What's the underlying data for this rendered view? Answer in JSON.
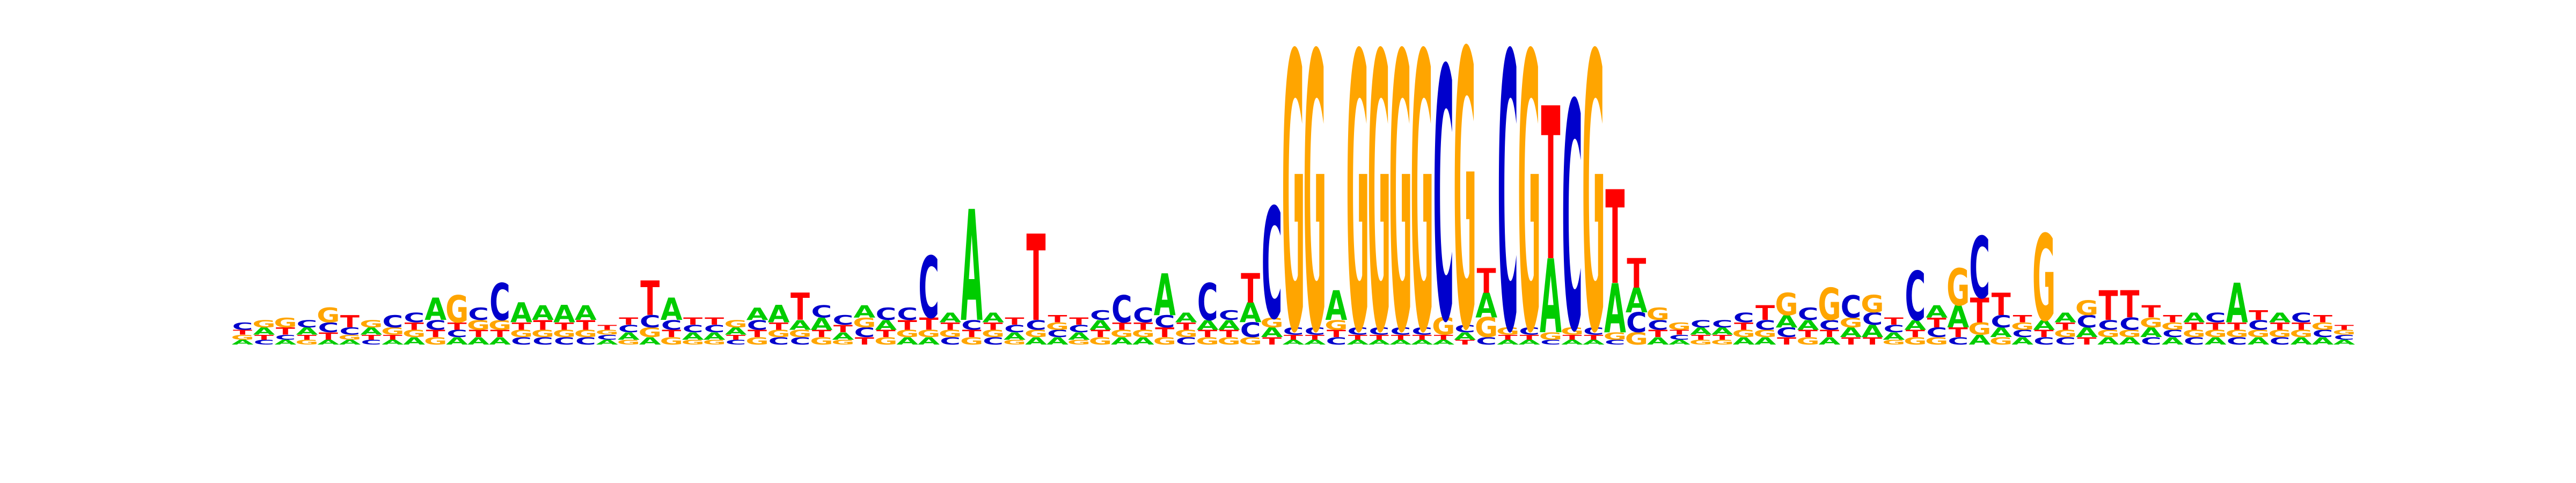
{
  "chart_data": {
    "type": "sequence-logo",
    "alphabet": [
      "A",
      "C",
      "G",
      "T"
    ],
    "colors": {
      "A": "#00cc00",
      "C": "#0000cc",
      "G": "#ffa500",
      "T": "#ff0000"
    },
    "ylim": [
      0,
      2
    ],
    "unit": "bits",
    "positions": [
      {
        "A": 0.02,
        "C": 0.03,
        "G": 0.02,
        "T": 0.02
      },
      {
        "A": 0.03,
        "C": 0.02,
        "G": 0.03,
        "T": 0.02
      },
      {
        "A": 0.02,
        "C": 0.02,
        "G": 0.04,
        "T": 0.03
      },
      {
        "A": 0.03,
        "C": 0.03,
        "G": 0.02,
        "T": 0.02
      },
      {
        "A": 0.02,
        "C": 0.04,
        "G": 0.06,
        "T": 0.03
      },
      {
        "A": 0.02,
        "C": 0.03,
        "G": 0.02,
        "T": 0.05
      },
      {
        "A": 0.03,
        "C": 0.02,
        "G": 0.03,
        "T": 0.02
      },
      {
        "A": 0.02,
        "C": 0.05,
        "G": 0.03,
        "T": 0.02
      },
      {
        "A": 0.03,
        "C": 0.04,
        "G": 0.03,
        "T": 0.03
      },
      {
        "A": 0.09,
        "C": 0.04,
        "G": 0.03,
        "T": 0.03
      },
      {
        "A": 0.03,
        "C": 0.03,
        "G": 0.11,
        "T": 0.03
      },
      {
        "A": 0.03,
        "C": 0.05,
        "G": 0.04,
        "T": 0.03
      },
      {
        "A": 0.03,
        "C": 0.15,
        "G": 0.04,
        "T": 0.03
      },
      {
        "A": 0.08,
        "C": 0.03,
        "G": 0.03,
        "T": 0.03
      },
      {
        "A": 0.06,
        "C": 0.03,
        "G": 0.03,
        "T": 0.04
      },
      {
        "A": 0.07,
        "C": 0.03,
        "G": 0.03,
        "T": 0.03
      },
      {
        "A": 0.06,
        "C": 0.03,
        "G": 0.03,
        "T": 0.04
      },
      {
        "A": 0.02,
        "C": 0.02,
        "G": 0.02,
        "T": 0.02
      },
      {
        "A": 0.03,
        "C": 0.03,
        "G": 0.02,
        "T": 0.03
      },
      {
        "A": 0.03,
        "C": 0.05,
        "G": 0.04,
        "T": 0.14
      },
      {
        "A": 0.09,
        "C": 0.04,
        "G": 0.03,
        "T": 0.03
      },
      {
        "A": 0.03,
        "C": 0.03,
        "G": 0.02,
        "T": 0.03
      },
      {
        "A": 0.03,
        "C": 0.03,
        "G": 0.02,
        "T": 0.03
      },
      {
        "A": 0.03,
        "C": 0.02,
        "G": 0.03,
        "T": 0.02
      },
      {
        "A": 0.05,
        "C": 0.04,
        "G": 0.03,
        "T": 0.03
      },
      {
        "A": 0.07,
        "C": 0.03,
        "G": 0.03,
        "T": 0.03
      },
      {
        "A": 0.04,
        "C": 0.03,
        "G": 0.03,
        "T": 0.11
      },
      {
        "A": 0.05,
        "C": 0.05,
        "G": 0.03,
        "T": 0.03
      },
      {
        "A": 0.03,
        "C": 0.04,
        "G": 0.02,
        "T": 0.03
      },
      {
        "A": 0.05,
        "C": 0.04,
        "G": 0.04,
        "T": 0.03
      },
      {
        "A": 0.04,
        "C": 0.05,
        "G": 0.03,
        "T": 0.03
      },
      {
        "A": 0.03,
        "C": 0.05,
        "G": 0.03,
        "T": 0.04
      },
      {
        "A": 0.03,
        "C": 0.25,
        "G": 0.03,
        "T": 0.05
      },
      {
        "A": 0.04,
        "C": 0.03,
        "G": 0.03,
        "T": 0.03
      },
      {
        "A": 0.45,
        "C": 0.04,
        "G": 0.03,
        "T": 0.03
      },
      {
        "A": 0.04,
        "C": 0.03,
        "G": 0.03,
        "T": 0.03
      },
      {
        "A": 0.03,
        "C": 0.03,
        "G": 0.02,
        "T": 0.03
      },
      {
        "A": 0.03,
        "C": 0.04,
        "G": 0.03,
        "T": 0.35
      },
      {
        "A": 0.03,
        "C": 0.03,
        "G": 0.03,
        "T": 0.03
      },
      {
        "A": 0.03,
        "C": 0.03,
        "G": 0.02,
        "T": 0.03
      },
      {
        "A": 0.04,
        "C": 0.04,
        "G": 0.03,
        "T": 0.03
      },
      {
        "A": 0.03,
        "C": 0.11,
        "G": 0.03,
        "T": 0.03
      },
      {
        "A": 0.03,
        "C": 0.06,
        "G": 0.03,
        "T": 0.03
      },
      {
        "A": 0.17,
        "C": 0.05,
        "G": 0.03,
        "T": 0.04
      },
      {
        "A": 0.04,
        "C": 0.03,
        "G": 0.03,
        "T": 0.03
      },
      {
        "A": 0.04,
        "C": 0.15,
        "G": 0.03,
        "T": 0.03
      },
      {
        "A": 0.04,
        "C": 0.04,
        "G": 0.03,
        "T": 0.03
      },
      {
        "A": 0.08,
        "C": 0.06,
        "G": 0.03,
        "T": 0.12
      },
      {
        "A": 0.04,
        "C": 0.45,
        "G": 0.04,
        "T": 0.03
      },
      {
        "A": 0.02,
        "C": 0.03,
        "G": 1.12,
        "T": 0.02
      },
      {
        "A": 0.02,
        "C": 0.03,
        "G": 1.12,
        "T": 0.02
      },
      {
        "A": 0.12,
        "C": 0.03,
        "G": 0.04,
        "T": 0.03
      },
      {
        "A": 0.02,
        "C": 0.03,
        "G": 1.12,
        "T": 0.02
      },
      {
        "A": 0.02,
        "C": 0.03,
        "G": 1.12,
        "T": 0.02
      },
      {
        "A": 0.02,
        "C": 0.03,
        "G": 1.12,
        "T": 0.02
      },
      {
        "A": 0.02,
        "C": 0.03,
        "G": 1.12,
        "T": 0.02
      },
      {
        "A": 0.02,
        "C": 1.02,
        "G": 0.07,
        "T": 0.02
      },
      {
        "A": 0.03,
        "C": 0.03,
        "G": 1.12,
        "T": 0.02
      },
      {
        "A": 0.1,
        "C": 0.03,
        "G": 0.08,
        "T": 0.1
      },
      {
        "A": 0.02,
        "C": 1.12,
        "G": 0.03,
        "T": 0.02
      },
      {
        "A": 0.02,
        "C": 0.03,
        "G": 1.12,
        "T": 0.02
      },
      {
        "A": 0.3,
        "C": 0.02,
        "G": 0.03,
        "T": 0.62
      },
      {
        "A": 0.02,
        "C": 0.92,
        "G": 0.03,
        "T": 0.02
      },
      {
        "A": 0.02,
        "C": 0.03,
        "G": 1.12,
        "T": 0.02
      },
      {
        "A": 0.2,
        "C": 0.02,
        "G": 0.03,
        "T": 0.38
      },
      {
        "A": 0.1,
        "C": 0.08,
        "G": 0.05,
        "T": 0.12
      },
      {
        "A": 0.03,
        "C": 0.04,
        "G": 0.05,
        "T": 0.03
      },
      {
        "A": 0.02,
        "C": 0.02,
        "G": 0.03,
        "T": 0.02
      },
      {
        "A": 0.03,
        "C": 0.03,
        "G": 0.02,
        "T": 0.02
      },
      {
        "A": 0.03,
        "C": 0.03,
        "G": 0.02,
        "T": 0.02
      },
      {
        "A": 0.03,
        "C": 0.04,
        "G": 0.03,
        "T": 0.03
      },
      {
        "A": 0.03,
        "C": 0.04,
        "G": 0.03,
        "T": 0.06
      },
      {
        "A": 0.05,
        "C": 0.04,
        "G": 0.09,
        "T": 0.03
      },
      {
        "A": 0.04,
        "C": 0.05,
        "G": 0.03,
        "T": 0.03
      },
      {
        "A": 0.03,
        "C": 0.04,
        "G": 0.13,
        "T": 0.03
      },
      {
        "A": 0.04,
        "C": 0.09,
        "G": 0.04,
        "T": 0.03
      },
      {
        "A": 0.05,
        "C": 0.05,
        "G": 0.07,
        "T": 0.03
      },
      {
        "A": 0.03,
        "C": 0.03,
        "G": 0.02,
        "T": 0.03
      },
      {
        "A": 0.04,
        "C": 0.2,
        "G": 0.03,
        "T": 0.03
      },
      {
        "A": 0.05,
        "C": 0.04,
        "G": 0.03,
        "T": 0.04
      },
      {
        "A": 0.09,
        "C": 0.03,
        "G": 0.15,
        "T": 0.04
      },
      {
        "A": 0.04,
        "C": 0.25,
        "G": 0.05,
        "T": 0.1
      },
      {
        "A": 0.04,
        "C": 0.05,
        "G": 0.03,
        "T": 0.09
      },
      {
        "A": 0.03,
        "C": 0.03,
        "G": 0.03,
        "T": 0.03
      },
      {
        "A": 0.04,
        "C": 0.03,
        "G": 0.35,
        "T": 0.03
      },
      {
        "A": 0.04,
        "C": 0.03,
        "G": 0.03,
        "T": 0.03
      },
      {
        "A": 0.04,
        "C": 0.05,
        "G": 0.06,
        "T": 0.03
      },
      {
        "A": 0.03,
        "C": 0.04,
        "G": 0.03,
        "T": 0.12
      },
      {
        "A": 0.03,
        "C": 0.05,
        "G": 0.03,
        "T": 0.11
      },
      {
        "A": 0.04,
        "C": 0.03,
        "G": 0.04,
        "T": 0.05
      },
      {
        "A": 0.03,
        "C": 0.03,
        "G": 0.03,
        "T": 0.03
      },
      {
        "A": 0.04,
        "C": 0.03,
        "G": 0.03,
        "T": 0.03
      },
      {
        "A": 0.03,
        "C": 0.04,
        "G": 0.03,
        "T": 0.03
      },
      {
        "A": 0.16,
        "C": 0.03,
        "G": 0.03,
        "T": 0.03
      },
      {
        "A": 0.03,
        "C": 0.04,
        "G": 0.03,
        "T": 0.04
      },
      {
        "A": 0.04,
        "C": 0.03,
        "G": 0.03,
        "T": 0.03
      },
      {
        "A": 0.03,
        "C": 0.04,
        "G": 0.03,
        "T": 0.03
      },
      {
        "A": 0.03,
        "C": 0.03,
        "G": 0.03,
        "T": 0.03
      },
      {
        "A": 0.02,
        "C": 0.02,
        "G": 0.02,
        "T": 0.02
      }
    ]
  }
}
